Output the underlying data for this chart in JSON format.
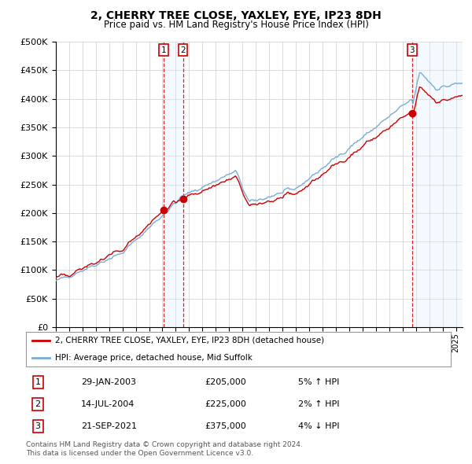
{
  "title": "2, CHERRY TREE CLOSE, YAXLEY, EYE, IP23 8DH",
  "subtitle": "Price paid vs. HM Land Registry's House Price Index (HPI)",
  "legend_line1": "2, CHERRY TREE CLOSE, YAXLEY, EYE, IP23 8DH (detached house)",
  "legend_line2": "HPI: Average price, detached house, Mid Suffolk",
  "transactions": [
    {
      "num": 1,
      "date": "29-JAN-2003",
      "date_decimal": 2003.08,
      "price": 205000,
      "pct": "5%",
      "dir": "↑"
    },
    {
      "num": 2,
      "date": "14-JUL-2004",
      "date_decimal": 2004.54,
      "price": 225000,
      "pct": "2%",
      "dir": "↑"
    },
    {
      "num": 3,
      "date": "21-SEP-2021",
      "date_decimal": 2021.72,
      "price": 375000,
      "pct": "4%",
      "dir": "↓"
    }
  ],
  "footer1": "Contains HM Land Registry data © Crown copyright and database right 2024.",
  "footer2": "This data is licensed under the Open Government Licence v3.0.",
  "xmin": 1995.0,
  "xmax": 2025.5,
  "ymin": 0,
  "ymax": 500000,
  "yticks": [
    0,
    50000,
    100000,
    150000,
    200000,
    250000,
    300000,
    350000,
    400000,
    450000,
    500000
  ],
  "red_color": "#cc0000",
  "blue_color": "#7aadd4",
  "bg_color": "#ffffff",
  "grid_color": "#cccccc",
  "shade_color": "#ddeeff"
}
